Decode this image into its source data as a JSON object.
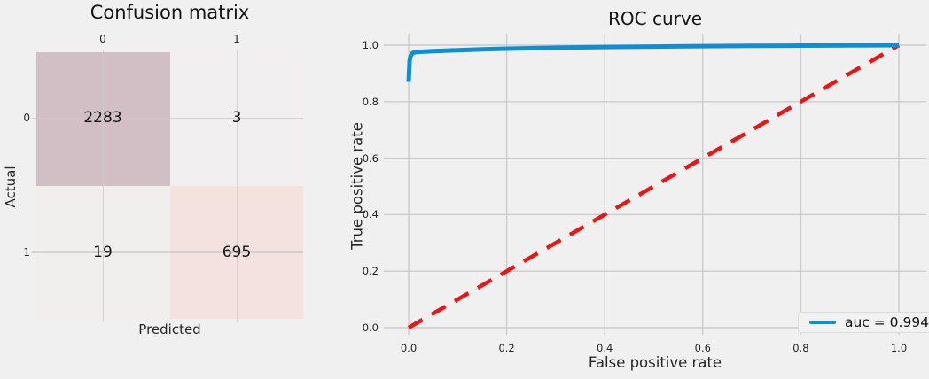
{
  "figure": {
    "background": "#f0f0f0",
    "grid_color": "#cbcbcb"
  },
  "chart_data": [
    {
      "type": "heatmap",
      "title": "Confusion matrix",
      "xlabel": "Predicted",
      "ylabel": "Actual",
      "x_categories": [
        "0",
        "1"
      ],
      "y_categories": [
        "0",
        "1"
      ],
      "values": [
        [
          2283,
          3
        ],
        [
          19,
          695
        ]
      ],
      "cell_colors": [
        [
          "#d1bfc5",
          "#f2eff1"
        ],
        [
          "#f0efed",
          "#f4e2de"
        ]
      ],
      "grid": true
    },
    {
      "type": "line",
      "title": "ROC curve",
      "xlabel": "False positive rate",
      "ylabel": "True positive rate",
      "xlim": [
        0,
        1
      ],
      "ylim": [
        0,
        1
      ],
      "x_ticks": [
        0,
        0.2,
        0.4,
        0.6,
        0.8,
        1.0
      ],
      "y_ticks": [
        0,
        0.2,
        0.4,
        0.6,
        0.8,
        1.0
      ],
      "grid": true,
      "legend_position": "lower right",
      "auc": 0.994,
      "series": [
        {
          "color": "#ea1515",
          "width": 4.5,
          "dash": [
            18,
            12
          ],
          "points": [
            [
              0,
              0
            ],
            [
              1,
              1
            ]
          ]
        },
        {
          "name": "auc = 0.994",
          "color": "#0e8fd4",
          "width": 5,
          "dash": null,
          "points": [
            [
              0,
              0.87
            ],
            [
              0.002,
              0.945
            ],
            [
              0.004,
              0.962
            ],
            [
              0.008,
              0.972
            ],
            [
              0.015,
              0.976
            ],
            [
              0.05,
              0.979
            ],
            [
              0.1,
              0.982
            ],
            [
              0.15,
              0.985
            ],
            [
              0.2,
              0.9875
            ],
            [
              0.3,
              0.991
            ],
            [
              0.4,
              0.9935
            ],
            [
              0.5,
              0.995
            ],
            [
              0.6,
              0.9965
            ],
            [
              0.7,
              0.9975
            ],
            [
              0.8,
              0.9985
            ],
            [
              0.9,
              0.9993
            ],
            [
              1,
              1
            ]
          ]
        }
      ]
    }
  ]
}
